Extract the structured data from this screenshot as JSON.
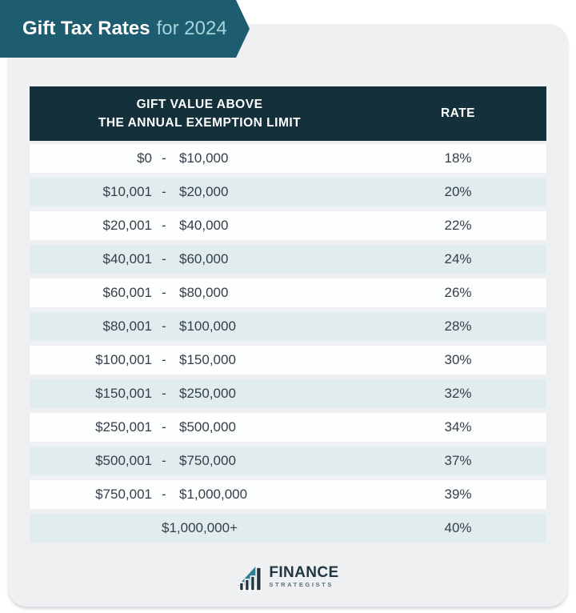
{
  "banner": {
    "title_bold": "Gift Tax Rates",
    "title_rest": "for 2024"
  },
  "table": {
    "header": {
      "col1_line1": "GIFT VALUE ABOVE",
      "col1_line2": "THE ANNUAL EXEMPTION LIMIT",
      "col2": "RATE"
    },
    "range_separator": "-"
  },
  "chart_data": {
    "type": "table",
    "title": "Gift Tax Rates for 2024",
    "columns": [
      "Gift Value Above the Annual Exemption Limit",
      "Rate"
    ],
    "rows": [
      {
        "range_from": "$0",
        "range_to": "$10,000",
        "rate": "18%"
      },
      {
        "range_from": "$10,001",
        "range_to": "$20,000",
        "rate": "20%"
      },
      {
        "range_from": "$20,001",
        "range_to": "$40,000",
        "rate": "22%"
      },
      {
        "range_from": "$40,001",
        "range_to": "$60,000",
        "rate": "24%"
      },
      {
        "range_from": "$60,001",
        "range_to": "$80,000",
        "rate": "26%"
      },
      {
        "range_from": "$80,001",
        "range_to": "$100,000",
        "rate": "28%"
      },
      {
        "range_from": "$100,001",
        "range_to": "$150,000",
        "rate": "30%"
      },
      {
        "range_from": "$150,001",
        "range_to": "$250,000",
        "rate": "32%"
      },
      {
        "range_from": "$250,001",
        "range_to": "$500,000",
        "rate": "34%"
      },
      {
        "range_from": "$500,001",
        "range_to": "$750,000",
        "rate": "37%"
      },
      {
        "range_from": "$750,001",
        "range_to": "$1,000,000",
        "rate": "39%"
      },
      {
        "range_single": "$1,000,000+",
        "rate": "40%"
      }
    ]
  },
  "logo": {
    "name_top": "FINANCE",
    "name_bottom": "STRATEGISTS"
  },
  "colors": {
    "banner_teal": "#1d5d6f",
    "banner_accent_text": "#a6d3da",
    "header_dark": "#14303b",
    "row_white": "#fdfefe",
    "row_blue": "#e1ecef",
    "card_background": "#eef0f2",
    "body_text": "#333f48",
    "logo_navy": "#223641",
    "logo_teal": "#2f7e8f"
  }
}
